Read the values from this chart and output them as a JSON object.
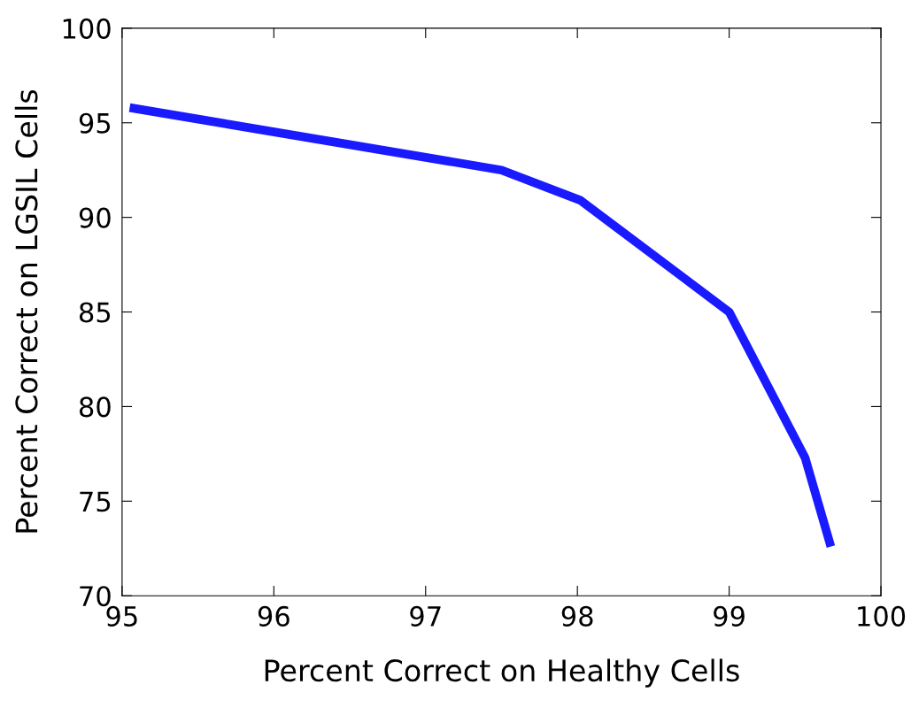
{
  "chart_data": {
    "type": "line",
    "xlabel": "Percent Correct on Healthy Cells",
    "ylabel": "Percent Correct on LGSIL Cells",
    "x": [
      95.05,
      97.5,
      98.02,
      99.0,
      99.5,
      99.67
    ],
    "series": [
      {
        "color": "#1a1aff",
        "values": [
          95.8,
          92.5,
          90.9,
          85.0,
          77.3,
          72.6
        ]
      }
    ],
    "xlim": [
      95,
      100
    ],
    "ylim": [
      70,
      100
    ],
    "xticks": [
      95,
      96,
      97,
      98,
      99,
      100
    ],
    "yticks": [
      70,
      75,
      80,
      85,
      90,
      95,
      100
    ],
    "grid": false,
    "legend": false
  }
}
